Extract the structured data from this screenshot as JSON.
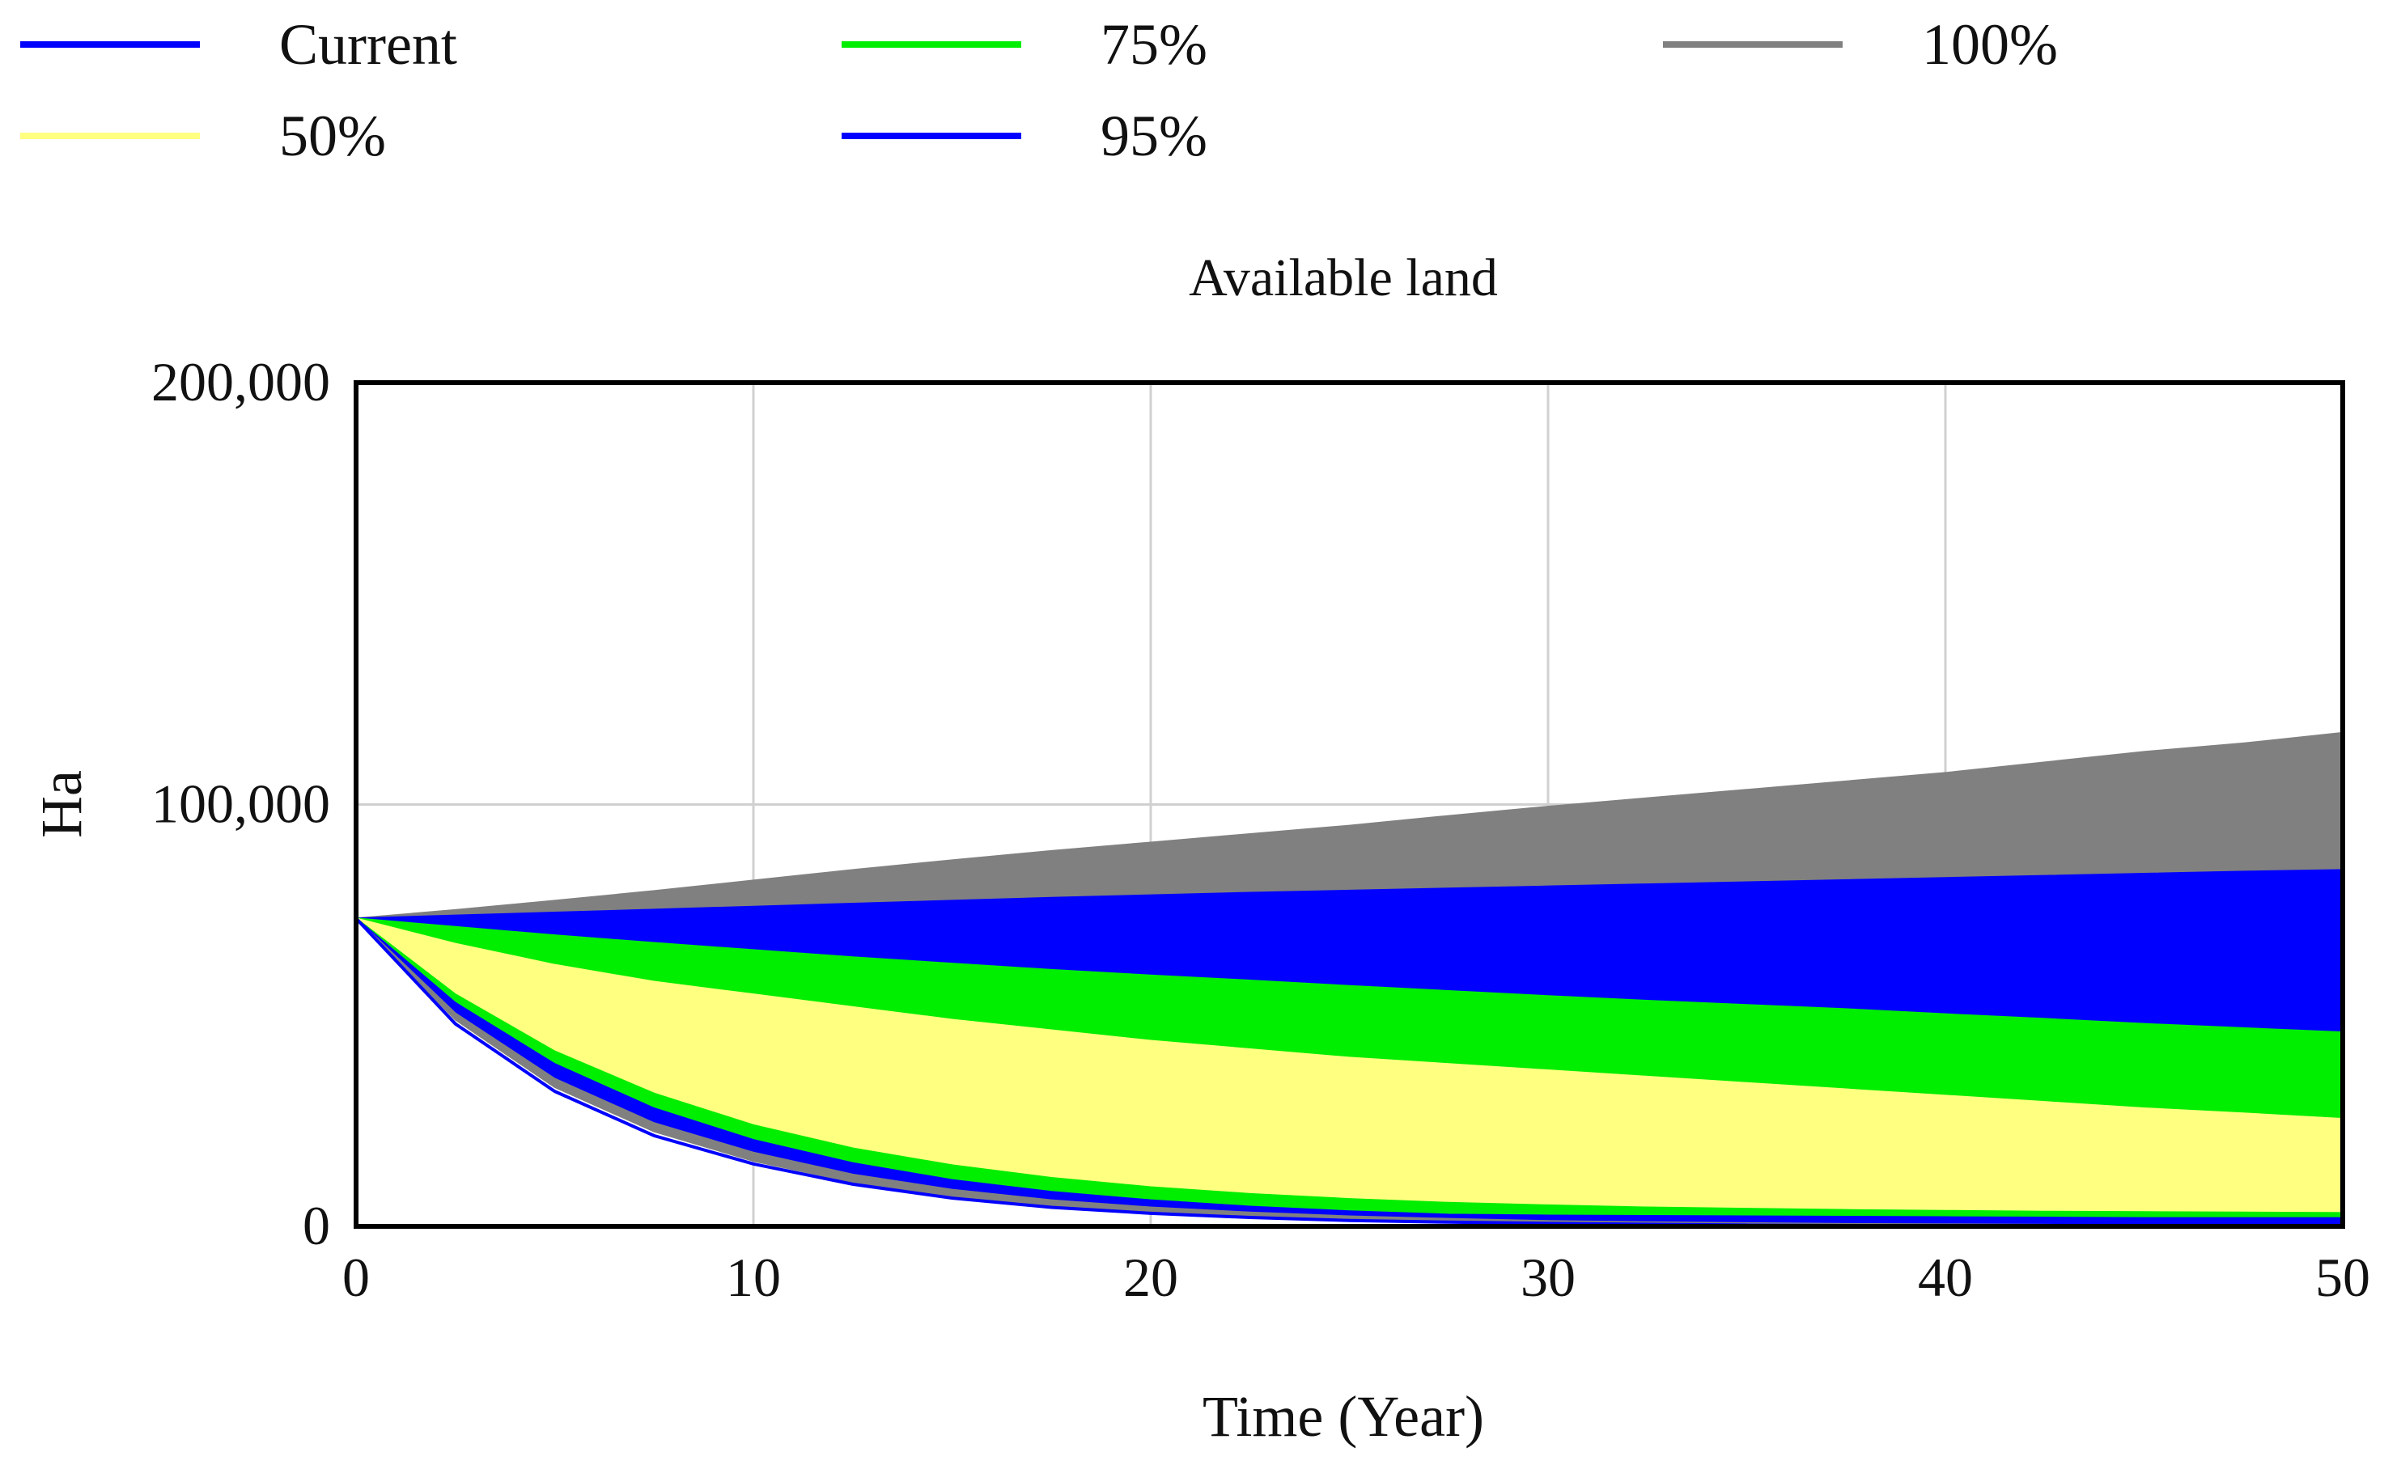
{
  "chart_data": {
    "type": "area",
    "title": "Available land",
    "xlabel": "Time (Year)",
    "ylabel": "Ha",
    "xlim": [
      0,
      50
    ],
    "ylim": [
      0,
      200000
    ],
    "x_ticks": [
      0,
      10,
      20,
      30,
      40,
      50
    ],
    "x_tick_labels": [
      "0",
      "10",
      "20",
      "30",
      "40",
      "50"
    ],
    "y_ticks": [
      0,
      100000,
      200000
    ],
    "y_tick_labels": [
      "0",
      "100,000",
      "200,000"
    ],
    "grid": true,
    "legend_position": "top",
    "legend": [
      {
        "label": "Current",
        "color": "#0000ff"
      },
      {
        "label": "75%",
        "color": "#00ee00"
      },
      {
        "label": "100%",
        "color": "#808080"
      },
      {
        "label": "50%",
        "color": "#ffff80"
      },
      {
        "label": "95%",
        "color": "#0000ff"
      }
    ],
    "x": [
      0,
      2.5,
      5,
      7.5,
      10,
      12.5,
      15,
      17.5,
      20,
      22.5,
      25,
      27.5,
      30,
      32.5,
      35,
      37.5,
      40,
      42.5,
      45,
      47.5,
      50
    ],
    "bands": [
      {
        "name": "100%",
        "color": "#808080",
        "upper": [
          73000,
          75000,
          77200,
          79500,
          82000,
          84500,
          86800,
          89000,
          91000,
          93000,
          95000,
          97300,
          99500,
          101500,
          103500,
          105500,
          107500,
          110000,
          112500,
          114500,
          117000
        ],
        "lower": [
          73000,
          73700,
          74400,
          75100,
          75800,
          76500,
          77200,
          77900,
          78500,
          79100,
          79600,
          80100,
          80600,
          81100,
          81600,
          82100,
          82600,
          83100,
          83600,
          84100,
          84500
        ]
      },
      {
        "name": "95%",
        "color": "#0000ff",
        "upper": [
          73000,
          73700,
          74400,
          75100,
          75800,
          76500,
          77200,
          77900,
          78500,
          79100,
          79600,
          80100,
          80600,
          81100,
          81600,
          82100,
          82600,
          83100,
          83600,
          84100,
          84500
        ],
        "lower": [
          73000,
          71000,
          69000,
          67200,
          65500,
          63800,
          62300,
          60800,
          59500,
          58300,
          57000,
          55800,
          54600,
          53500,
          52500,
          51500,
          50300,
          49200,
          48000,
          47000,
          46000
        ]
      },
      {
        "name": "75%",
        "color": "#00ee00",
        "upper": [
          73000,
          71000,
          69000,
          67200,
          65500,
          63800,
          62300,
          60800,
          59500,
          58300,
          57000,
          55800,
          54600,
          53500,
          52500,
          51500,
          50300,
          49200,
          48000,
          47000,
          46000
        ],
        "lower": [
          73000,
          67000,
          62000,
          58000,
          55000,
          52000,
          49000,
          46500,
          44000,
          42000,
          40000,
          38500,
          37000,
          35500,
          34000,
          32500,
          31000,
          29500,
          28000,
          26800,
          25500
        ]
      },
      {
        "name": "50%",
        "color": "#ffff80",
        "upper": [
          73000,
          67000,
          62000,
          58000,
          55000,
          52000,
          49000,
          46500,
          44000,
          42000,
          40000,
          38500,
          37000,
          35500,
          34000,
          32500,
          31000,
          29500,
          28000,
          26800,
          25500
        ],
        "lower": [
          73000,
          53000,
          38500,
          28000,
          20500,
          15000,
          11000,
          8200,
          6200,
          4700,
          3600,
          2800,
          2200,
          1700,
          1300,
          1000,
          800,
          600,
          500,
          400,
          300
        ]
      }
    ],
    "thin_bands": [
      {
        "name": "75% low edge",
        "color": "#00ee00",
        "upper": [
          73000,
          55000,
          41500,
          31500,
          24000,
          18500,
          14500,
          11500,
          9300,
          7700,
          6500,
          5600,
          5000,
          4500,
          4200,
          3900,
          3700,
          3500,
          3400,
          3300,
          3200
        ],
        "lower": [
          73000,
          53000,
          38500,
          28000,
          20500,
          15000,
          11000,
          8200,
          6200,
          4700,
          3600,
          2800,
          2200,
          1700,
          1300,
          1000,
          800,
          600,
          500,
          400,
          300
        ]
      },
      {
        "name": "95% low edge",
        "color": "#0000ff",
        "upper": [
          73000,
          53000,
          38500,
          28000,
          20500,
          15000,
          11000,
          8200,
          6200,
          4700,
          3600,
          2800,
          2600,
          2500,
          2400,
          2300,
          2200,
          2100,
          2000,
          2000,
          2000
        ],
        "lower": [
          73000,
          50500,
          35000,
          24500,
          17500,
          12300,
          8700,
          6200,
          4500,
          3300,
          2400,
          1800,
          1300,
          1000,
          800,
          600,
          500,
          400,
          300,
          200,
          200
        ]
      },
      {
        "name": "100% low edge",
        "color": "#808080",
        "upper": [
          73000,
          50500,
          35000,
          24500,
          17500,
          12300,
          8700,
          6200,
          4500,
          3300,
          2400,
          1800,
          1300,
          1000,
          800,
          600,
          500,
          400,
          300,
          200,
          200
        ],
        "lower": [
          73000,
          49000,
          33000,
          22500,
          15500,
          10500,
          7000,
          4800,
          3300,
          2300,
          1600,
          1100,
          800,
          500,
          400,
          300,
          200,
          100,
          100,
          0,
          0
        ]
      }
    ],
    "lines": [
      {
        "name": "Current",
        "color": "#0000ff",
        "values": [
          73000,
          48000,
          32000,
          21500,
          14800,
          10000,
          6700,
          4500,
          3100,
          2100,
          1400,
          1000,
          700,
          500,
          300,
          200,
          150,
          100,
          60,
          40,
          20
        ]
      }
    ]
  }
}
